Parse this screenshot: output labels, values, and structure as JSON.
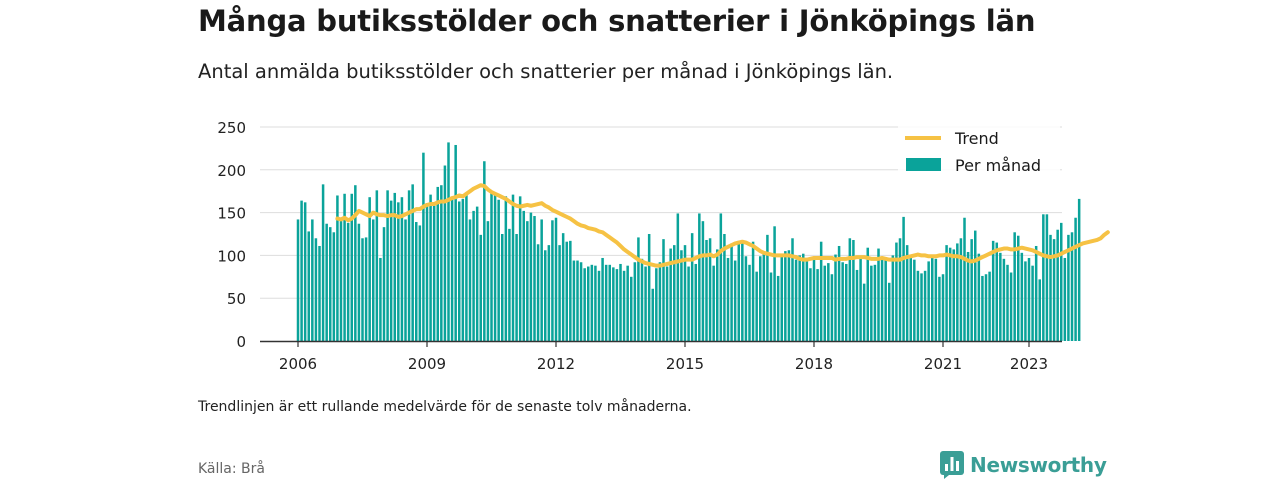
{
  "title": "Många butiksstölder och snatterier i Jönköpings län",
  "subtitle": "Antal anmälda butiksstölder och snatterier per månad i Jönköpings län.",
  "note": "Trendlinjen är ett rullande medelvärde för de senaste tolv månaderna.",
  "source": "Källa: Brå",
  "brand": {
    "name": "Newsworthy",
    "icon": "newsworthy-logo-icon"
  },
  "colors": {
    "bar": "#0aa39a",
    "trend": "#f6c244",
    "grid": "#dddddd",
    "axis": "#333333"
  },
  "chart_data": {
    "type": "bar",
    "start": "2006-01",
    "frequency": "monthly",
    "y_ticks": [
      0,
      50,
      100,
      150,
      200,
      250
    ],
    "ylim": [
      0,
      250
    ],
    "x_ticks": [
      "2006",
      "2009",
      "2012",
      "2015",
      "2018",
      "2021",
      "2023"
    ],
    "grid": true,
    "legend_position": "top-right",
    "series": [
      {
        "name": "Per månad",
        "type": "bar",
        "values": [
          142,
          164,
          162,
          128,
          142,
          120,
          111,
          183,
          137,
          133,
          127,
          170,
          141,
          172,
          138,
          172,
          182,
          137,
          120,
          121,
          168,
          142,
          176,
          97,
          133,
          176,
          164,
          173,
          162,
          168,
          142,
          176,
          183,
          139,
          135,
          220,
          161,
          171,
          158,
          180,
          182,
          205,
          232,
          168,
          229,
          163,
          166,
          171,
          142,
          152,
          157,
          124,
          210,
          140,
          175,
          170,
          165,
          125,
          169,
          131,
          171,
          125,
          169,
          152,
          140,
          150,
          146,
          113,
          142,
          106,
          112,
          141,
          144,
          112,
          126,
          116,
          117,
          94,
          94,
          92,
          85,
          87,
          89,
          88,
          82,
          97,
          89,
          89,
          86,
          84,
          90,
          82,
          88,
          75,
          92,
          121,
          96,
          87,
          125,
          61,
          85,
          92,
          119,
          87,
          108,
          112,
          149,
          106,
          112,
          87,
          126,
          90,
          149,
          140,
          118,
          120,
          88,
          107,
          149,
          125,
          97,
          114,
          94,
          117,
          116,
          99,
          89,
          116,
          81,
          99,
          102,
          124,
          80,
          134,
          76,
          100,
          105,
          106,
          120,
          95,
          100,
          102,
          97,
          85,
          97,
          84,
          116,
          88,
          91,
          78,
          101,
          111,
          92,
          90,
          120,
          118,
          83,
          98,
          67,
          109,
          88,
          89,
          108,
          97,
          98,
          68,
          100,
          115,
          120,
          145,
          112,
          98,
          95,
          82,
          79,
          82,
          93,
          101,
          96,
          75,
          78,
          112,
          109,
          107,
          114,
          120,
          144,
          104,
          119,
          129,
          102,
          76,
          78,
          81,
          117,
          115,
          103,
          96,
          89,
          80,
          127,
          123,
          103,
          93,
          97,
          88,
          111,
          72,
          148,
          148,
          124,
          119,
          130,
          138,
          97,
          124,
          127,
          144,
          166
        ]
      },
      {
        "name": "Trend",
        "type": "line",
        "start": "2006-12",
        "values": [
          143,
          142,
          144,
          141,
          143,
          147,
          152,
          150,
          148,
          146,
          150,
          148,
          147,
          147,
          146,
          147,
          147,
          145,
          146,
          148,
          150,
          152,
          154,
          154,
          157,
          159,
          160,
          160,
          162,
          163,
          163,
          165,
          167,
          168,
          170,
          169,
          172,
          175,
          178,
          180,
          182,
          181,
          177,
          174,
          172,
          170,
          168,
          166,
          163,
          160,
          158,
          157,
          158,
          159,
          158,
          159,
          160,
          161,
          158,
          156,
          153,
          151,
          149,
          147,
          145,
          143,
          140,
          137,
          135,
          134,
          132,
          131,
          130,
          128,
          127,
          124,
          121,
          118,
          115,
          111,
          107,
          104,
          101,
          98,
          95,
          93,
          91,
          90,
          89,
          88,
          88,
          89,
          90,
          91,
          92,
          93,
          94,
          95,
          95,
          95,
          97,
          99,
          100,
          100,
          101,
          99,
          101,
          105,
          108,
          110,
          112,
          114,
          115,
          116,
          115,
          113,
          111,
          108,
          105,
          103,
          102,
          101,
          100,
          100,
          100,
          100,
          100,
          99,
          98,
          96,
          95,
          95,
          96,
          97,
          97,
          97,
          97,
          97,
          97,
          95,
          96,
          96,
          96,
          97,
          97,
          98,
          98,
          98,
          97,
          96,
          96,
          96,
          97,
          96,
          95,
          95,
          95,
          95,
          97,
          98,
          99,
          100,
          101,
          100,
          100,
          99,
          99,
          99,
          100,
          100,
          101,
          100,
          99,
          99,
          98,
          96,
          94,
          93,
          94,
          96,
          98,
          100,
          102,
          104,
          106,
          107,
          108,
          108,
          107,
          107,
          108,
          109,
          108,
          107,
          106,
          104,
          102,
          100,
          99,
          98,
          99,
          100,
          102,
          104,
          106,
          108,
          110,
          112,
          114,
          115,
          116,
          117,
          118,
          120,
          124,
          127
        ]
      }
    ]
  }
}
